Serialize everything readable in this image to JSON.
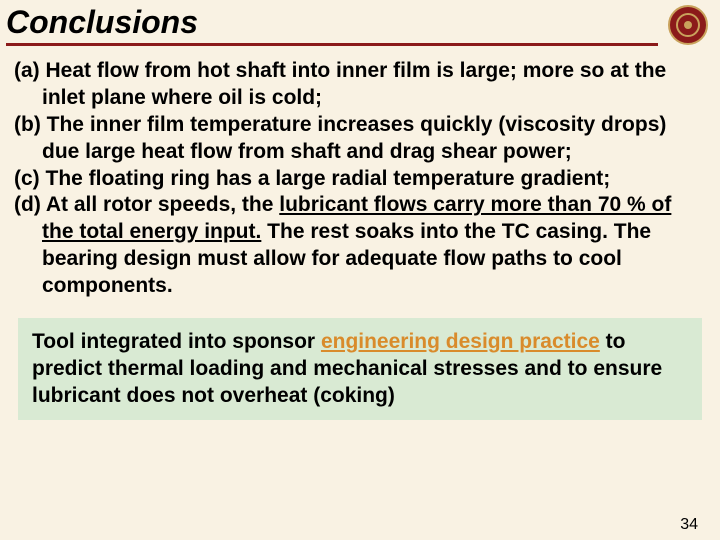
{
  "slide": {
    "title": "Conclusions",
    "page_number": "34",
    "background_color": "#f9f2e3",
    "title_underline_color": "#8b1a1a",
    "callout_bg": "#d9ead3",
    "highlight_color": "#d98b2b",
    "logo": {
      "bg": "#8b1a1a",
      "accent": "#c9a25c"
    },
    "items": {
      "a": {
        "label": "(a) ",
        "text": "Heat flow from hot shaft into inner film is large; more so at the inlet plane where oil is cold;"
      },
      "b": {
        "label": "(b) ",
        "text": "The inner film temperature increases quickly (viscosity drops) due large heat flow from shaft and drag shear power;"
      },
      "c": {
        "label": "(c) ",
        "text": "The floating ring has a large radial temperature gradient;"
      },
      "d": {
        "label": "(d) ",
        "pre": "At all rotor speeds, the ",
        "underlined": "lubricant flows carry more than 70 % of the total energy input.",
        "post": " The rest soaks into the TC casing. The bearing design must allow for adequate flow paths to cool components."
      }
    },
    "callout": {
      "pre": "Tool integrated into sponsor ",
      "highlight": "engineering design practice",
      "post": " to predict thermal loading and mechanical stresses and to ensure lubricant does not overheat (coking)"
    }
  }
}
